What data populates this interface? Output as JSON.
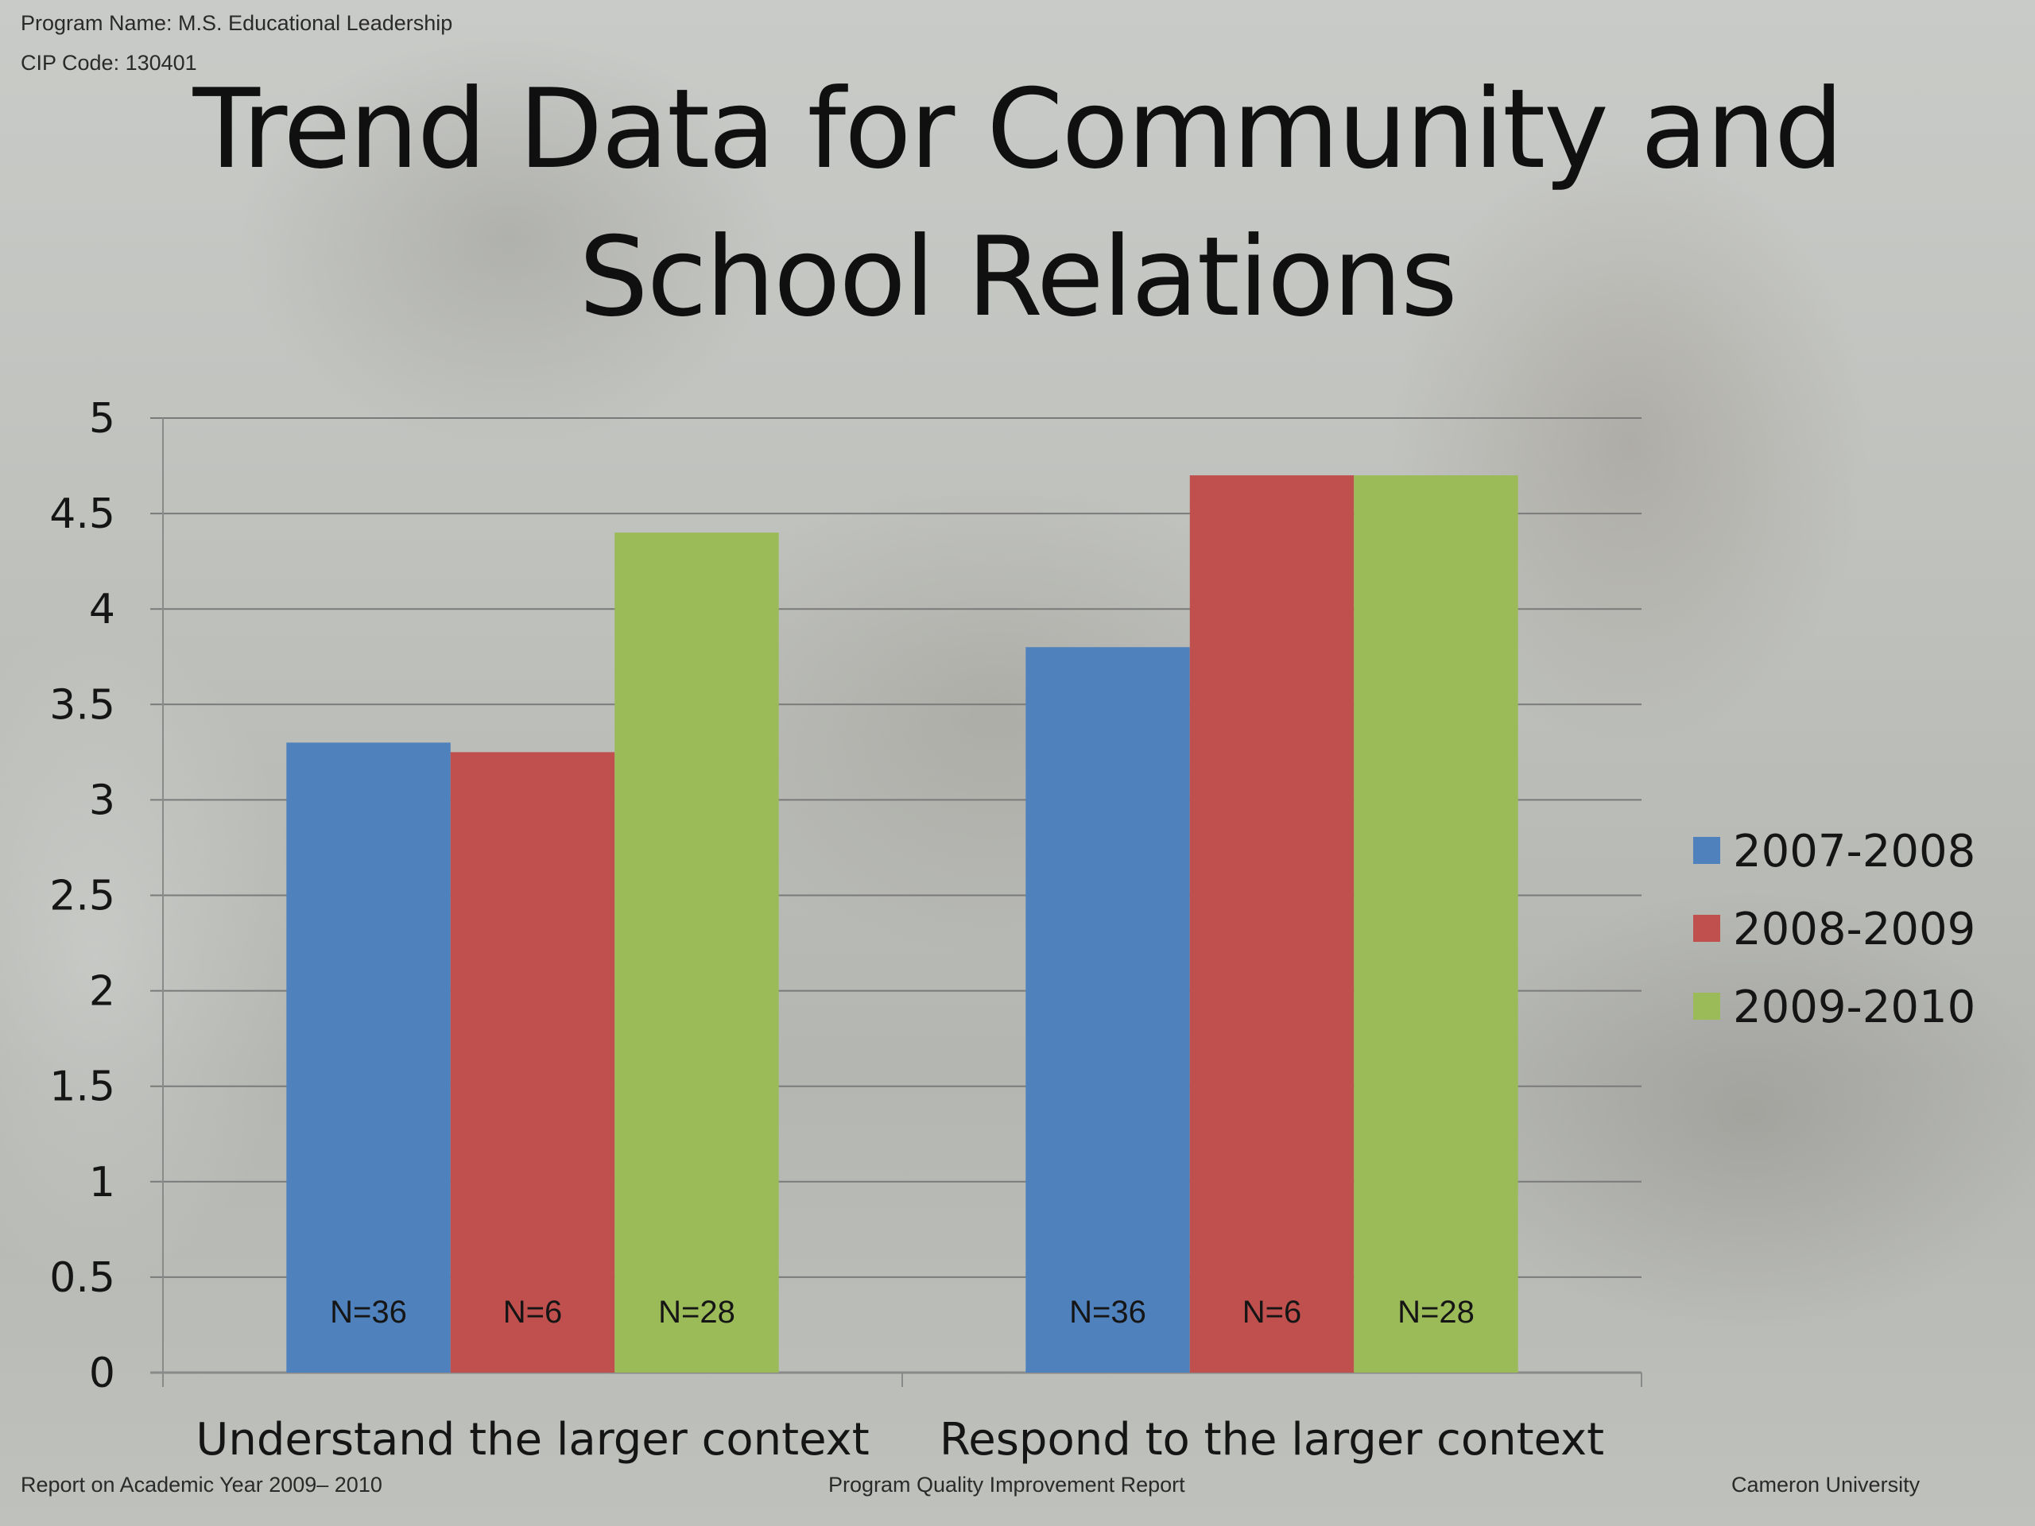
{
  "header": {
    "program_name": "Program Name: M.S. Educational Leadership",
    "cip_code": "CIP Code: 130401"
  },
  "footer": {
    "left": "Report on Academic Year 2009– 2010",
    "center": "Program Quality Improvement Report",
    "right": "Cameron University"
  },
  "colors": {
    "series": [
      "#4f81bd",
      "#c0504d",
      "#9bbb59"
    ],
    "gridline": "#7a7a7a"
  },
  "chart_data": {
    "type": "bar",
    "title": "Trend Data for Community and School Relations",
    "categories": [
      "Understand the larger context",
      "Respond to the larger context"
    ],
    "series": [
      {
        "name": "2007-2008",
        "values": [
          3.3,
          3.8
        ],
        "labels": [
          "N=36",
          "N=36"
        ]
      },
      {
        "name": "2008-2009",
        "values": [
          3.25,
          4.7
        ],
        "labels": [
          "N=6",
          "N=6"
        ]
      },
      {
        "name": "2009-2010",
        "values": [
          4.4,
          4.7
        ],
        "labels": [
          "N=28",
          "N=28"
        ]
      }
    ],
    "ylim": [
      0,
      5
    ],
    "yticks": [
      "0",
      "0.5",
      "1",
      "1.5",
      "2",
      "2.5",
      "3",
      "3.5",
      "4",
      "4.5",
      "5"
    ],
    "grid": true,
    "legend_position": "right"
  }
}
